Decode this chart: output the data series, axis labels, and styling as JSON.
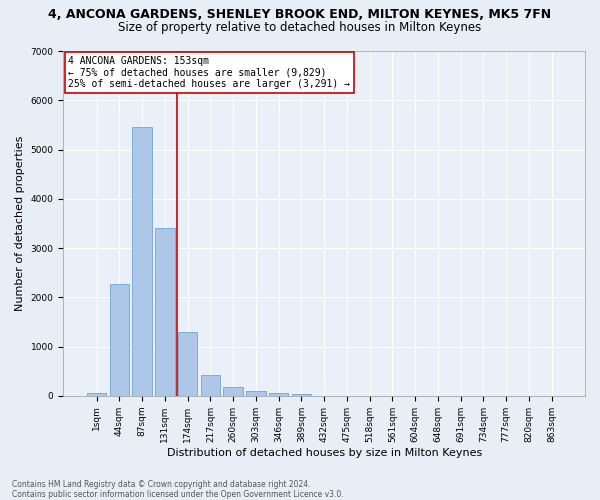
{
  "title": "4, ANCONA GARDENS, SHENLEY BROOK END, MILTON KEYNES, MK5 7FN",
  "subtitle": "Size of property relative to detached houses in Milton Keynes",
  "xlabel": "Distribution of detached houses by size in Milton Keynes",
  "ylabel": "Number of detached properties",
  "footer_line1": "Contains HM Land Registry data © Crown copyright and database right 2024.",
  "footer_line2": "Contains public sector information licensed under the Open Government Licence v3.0.",
  "bar_labels": [
    "1sqm",
    "44sqm",
    "87sqm",
    "131sqm",
    "174sqm",
    "217sqm",
    "260sqm",
    "303sqm",
    "346sqm",
    "389sqm",
    "432sqm",
    "475sqm",
    "518sqm",
    "561sqm",
    "604sqm",
    "648sqm",
    "691sqm",
    "734sqm",
    "777sqm",
    "820sqm",
    "863sqm"
  ],
  "bar_values": [
    60,
    2280,
    5450,
    3400,
    1300,
    420,
    170,
    100,
    65,
    30,
    0,
    0,
    0,
    0,
    0,
    0,
    0,
    0,
    0,
    0,
    0
  ],
  "bar_color": "#aec6e8",
  "bar_edgecolor": "#5a9fd4",
  "vline_x": 3.52,
  "vline_color": "#cc0000",
  "annotation_text": "4 ANCONA GARDENS: 153sqm\n← 75% of detached houses are smaller (9,829)\n25% of semi-detached houses are larger (3,291) →",
  "annotation_box_color": "#ffffff",
  "annotation_box_edgecolor": "#cc0000",
  "ylim": [
    0,
    7000
  ],
  "yticks": [
    0,
    1000,
    2000,
    3000,
    4000,
    5000,
    6000,
    7000
  ],
  "background_color": "#e8eef5",
  "plot_background_color": "#eaf0f8",
  "grid_color": "#ffffff",
  "title_fontsize": 9,
  "subtitle_fontsize": 8.5,
  "ylabel_fontsize": 8,
  "xlabel_fontsize": 8,
  "tick_fontsize": 6.5,
  "annotation_fontsize": 7,
  "footer_fontsize": 5.5
}
